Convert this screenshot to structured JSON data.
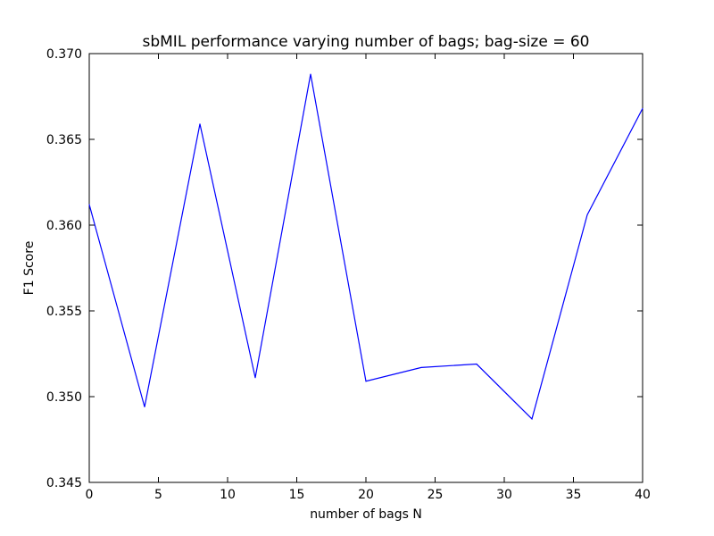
{
  "chart_data": {
    "type": "line",
    "title": "sbMIL performance varying number of bags; bag-size = 60",
    "xlabel": "number of bags N",
    "ylabel": "F1 Score",
    "xlim": [
      0,
      40
    ],
    "ylim": [
      0.345,
      0.37
    ],
    "xticks": [
      0,
      5,
      10,
      15,
      20,
      25,
      30,
      35,
      40
    ],
    "yticks": [
      "0.345",
      "0.350",
      "0.355",
      "0.360",
      "0.365",
      "0.370"
    ],
    "grid": false,
    "line_color": "#0000ff",
    "series": [
      {
        "x": [
          0,
          4,
          8,
          12,
          16,
          20,
          24,
          28,
          32,
          36,
          40
        ],
        "values": [
          0.3612,
          0.3494,
          0.3659,
          0.3511,
          0.3688,
          0.3509,
          0.3517,
          0.3519,
          0.3487,
          0.3606,
          0.3668
        ]
      }
    ]
  }
}
